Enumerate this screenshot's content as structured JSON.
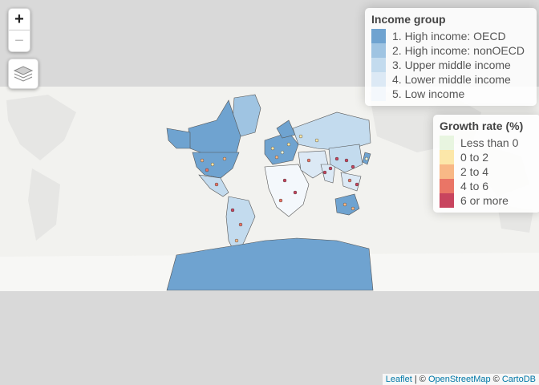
{
  "map": {
    "zoom_in_label": "+",
    "zoom_out_label": "−",
    "layers_icon": "layers-icon",
    "ocean_color": "#f2f2ef",
    "land_color": "#e8e8e6"
  },
  "income_legend": {
    "title": "Income group",
    "items": [
      {
        "label": "1. High income: OECD",
        "color": "#6fa3d0"
      },
      {
        "label": "2. High income: nonOECD",
        "color": "#9fc4e2"
      },
      {
        "label": "3. Upper middle income",
        "color": "#c3dbee"
      },
      {
        "label": "4. Lower middle income",
        "color": "#dce9f5"
      },
      {
        "label": "5. Low income",
        "color": "#f4f8fc"
      }
    ]
  },
  "growth_legend": {
    "title": "Growth rate (%)",
    "items": [
      {
        "label": "Less than 0",
        "color": "#e8f5e0"
      },
      {
        "label": "0 to 2",
        "color": "#fce7a9"
      },
      {
        "label": "2 to 4",
        "color": "#f8b886"
      },
      {
        "label": "4 to 6",
        "color": "#ea7566"
      },
      {
        "label": "6 or more",
        "color": "#c8445e"
      }
    ]
  },
  "attribution": {
    "leaflet": "Leaflet",
    "sep1": " | © ",
    "osm": "OpenStreetMap",
    "sep2": " © ",
    "carto": "CartoDB"
  }
}
